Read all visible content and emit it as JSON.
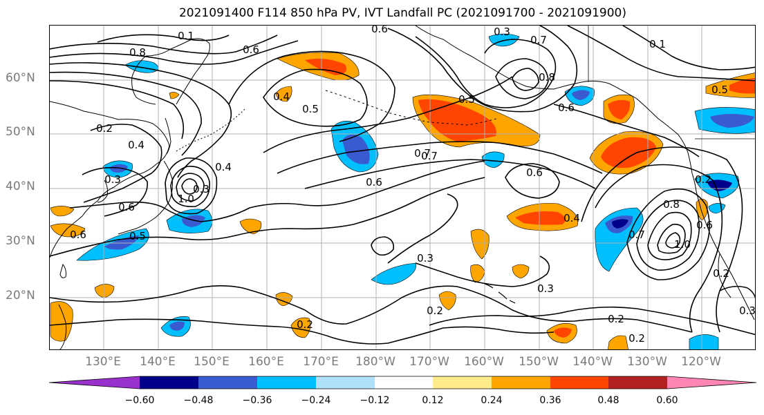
{
  "title": "2021091400 F114 850 hPa PV, IVT Landfall PC (2021091700 - 2021091900)",
  "lat_labels": [
    "60°N",
    "50°N",
    "40°N",
    "30°N",
    "20°N"
  ],
  "lon_labels": [
    "130°E",
    "140°E",
    "150°E",
    "160°E",
    "170°E",
    "180°W",
    "170°W",
    "160°W",
    "150°W",
    "140°W",
    "130°W",
    "120°W"
  ],
  "colorbar": {
    "colors": [
      "#9932cc",
      "#00008b",
      "#3a5bcf",
      "#00bfff",
      "#b0e0fa",
      "#ffffff",
      "#ffec8b",
      "#ffa500",
      "#ff4500",
      "#b22222",
      "#ff85b4"
    ],
    "tick_labels": [
      "−0.60",
      "−0.48",
      "−0.36",
      "−0.24",
      "−0.12",
      "0.12",
      "0.24",
      "0.36",
      "0.48",
      "0.60"
    ]
  },
  "contour_labels": [
    "0.6",
    "0.3",
    "0.7",
    "0.1",
    "0.8",
    "0.5",
    "0.4",
    "0.6",
    "0.5",
    "0.6",
    "0.7",
    "0.8",
    "0.5",
    "0.1",
    "0.2",
    "0.4",
    "0.3",
    "0.4",
    "0.6",
    "0.7",
    "0.6",
    "0.6",
    "0.4",
    "1.0",
    "0.3",
    "0.5",
    "0.6",
    "0.8",
    "0.7",
    "1.0",
    "0.6",
    "0.3",
    "0.3",
    "0.2",
    "0.2",
    "0.2",
    "0.2",
    "0.2",
    "0.3",
    "0.2"
  ]
}
